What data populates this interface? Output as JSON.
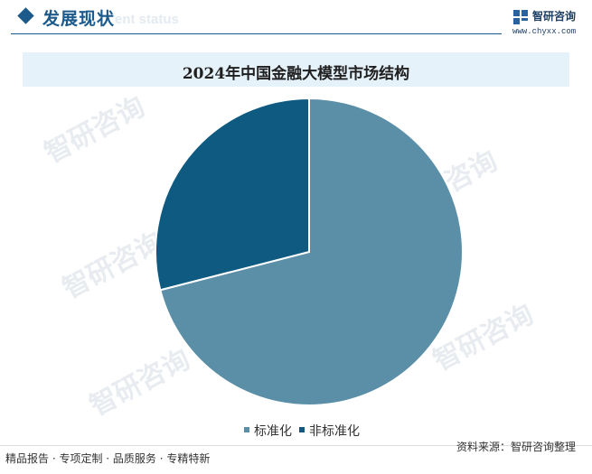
{
  "header": {
    "section_title": "发展现状",
    "section_subtitle": "ent status",
    "brand_name": "智研咨询",
    "brand_url": "www.chyxx.com"
  },
  "watermark": {
    "text": "智研咨询"
  },
  "chart_data": {
    "type": "pie",
    "title": "2024年中国金融大模型市场结构",
    "start_angle_deg": 0,
    "direction": "clockwise",
    "slices": [
      {
        "label": "标准化",
        "value": 71,
        "color": "#5b8fa8"
      },
      {
        "label": "非标准化",
        "value": 29,
        "color": "#0e5a80"
      }
    ],
    "legend_position": "bottom"
  },
  "footer": {
    "tagline": "精品报告 · 专项定制 · 品质服务 · 专精特新",
    "source": "资料来源：智研咨询整理"
  }
}
